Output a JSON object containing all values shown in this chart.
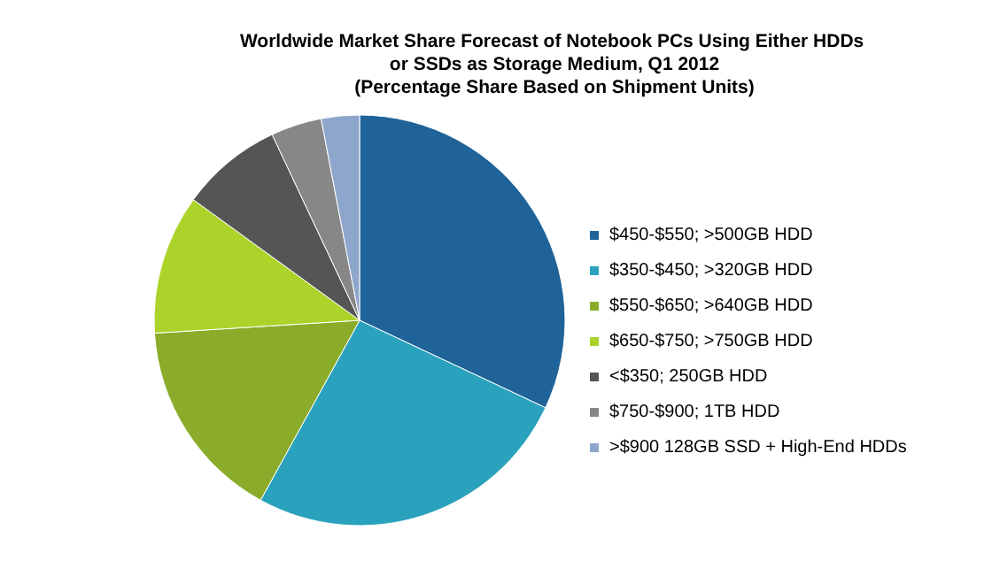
{
  "chart_data": {
    "type": "pie",
    "title": "Worldwide Market Share Forecast of Notebook PCs Using Either HDDs or SSDs as Storage Medium, Q1 2012",
    "subtitle": "(Percentage Share Based on Shipment Units)",
    "categories": [
      "$450-$550; >500GB HDD",
      "$350-$450; >320GB HDD",
      "$550-$650; >640GB HDD",
      "$650-$750; >750GB HDD",
      "<$350; 250GB HDD",
      "$750-$900; 1TB HDD",
      ">$900 128GB SSD + High-End HDDs"
    ],
    "values": [
      32,
      26,
      16,
      11,
      8,
      4,
      3
    ],
    "colors": [
      "#1f6399",
      "#2aa2bd",
      "#8aac2a",
      "#acd32a",
      "#555555",
      "#878787",
      "#8ea6cc"
    ],
    "legend": "right"
  }
}
